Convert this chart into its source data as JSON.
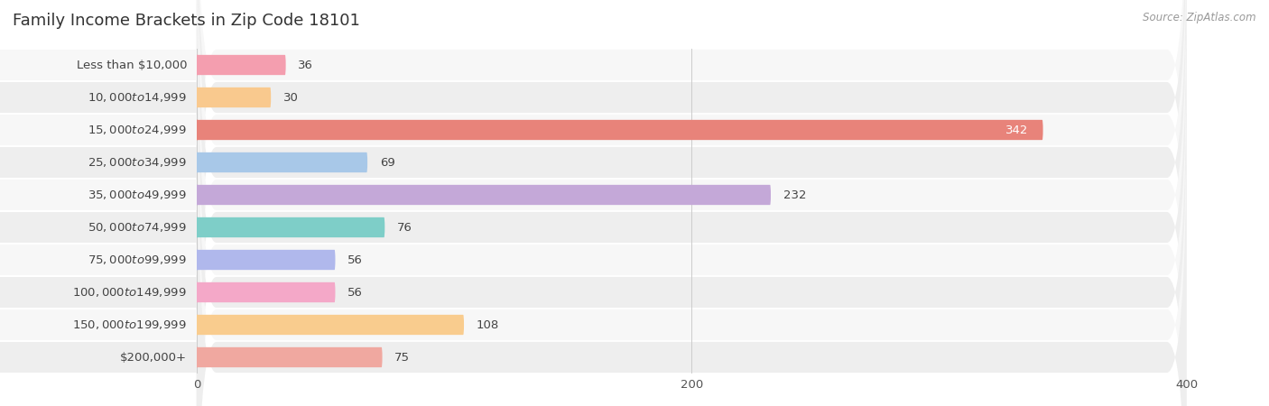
{
  "title": "Family Income Brackets in Zip Code 18101",
  "source": "Source: ZipAtlas.com",
  "categories": [
    "Less than $10,000",
    "$10,000 to $14,999",
    "$15,000 to $24,999",
    "$25,000 to $34,999",
    "$35,000 to $49,999",
    "$50,000 to $74,999",
    "$75,000 to $99,999",
    "$100,000 to $149,999",
    "$150,000 to $199,999",
    "$200,000+"
  ],
  "values": [
    36,
    30,
    342,
    69,
    232,
    76,
    56,
    56,
    108,
    75
  ],
  "bar_colors": [
    "#F49EAF",
    "#F9C98E",
    "#E8837A",
    "#A8C8E8",
    "#C4A8D8",
    "#7ECEC8",
    "#B0B8EC",
    "#F4A8C8",
    "#F9CC8E",
    "#F0A8A0"
  ],
  "row_bg_light": "#f7f7f7",
  "row_bg_dark": "#eeeeee",
  "xlim": [
    0,
    400
  ],
  "xticks": [
    0,
    200,
    400
  ],
  "title_fontsize": 13,
  "label_fontsize": 9.5,
  "value_fontsize": 9.5
}
